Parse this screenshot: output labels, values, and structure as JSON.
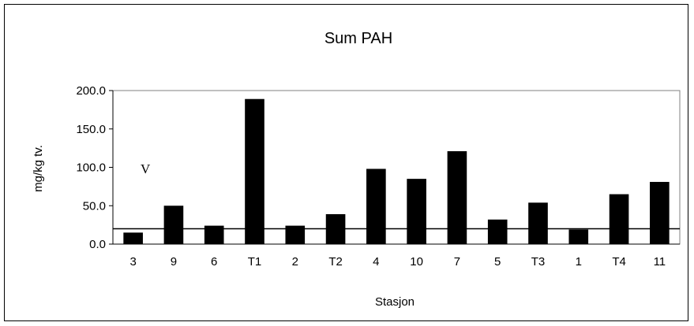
{
  "chart_data": {
    "type": "bar",
    "title": "Sum PAH",
    "xlabel": "Stasjon",
    "ylabel": "mg/kg tv.",
    "categories": [
      "3",
      "9",
      "6",
      "T1",
      "2",
      "T2",
      "4",
      "10",
      "7",
      "5",
      "T3",
      "1",
      "T4",
      "11"
    ],
    "values": [
      15,
      50,
      24,
      189,
      24,
      39,
      98,
      85,
      121,
      32,
      54,
      19,
      65,
      81
    ],
    "ylim": [
      0,
      200
    ],
    "yticks": [
      0,
      50,
      100,
      150,
      200
    ],
    "ytick_labels": [
      "0.0",
      "50.0",
      "100.0",
      "150.0",
      "200.0"
    ],
    "reference_line": 20,
    "annotation": "V",
    "bar_color": "#000000",
    "grid": false,
    "legend": "none"
  }
}
